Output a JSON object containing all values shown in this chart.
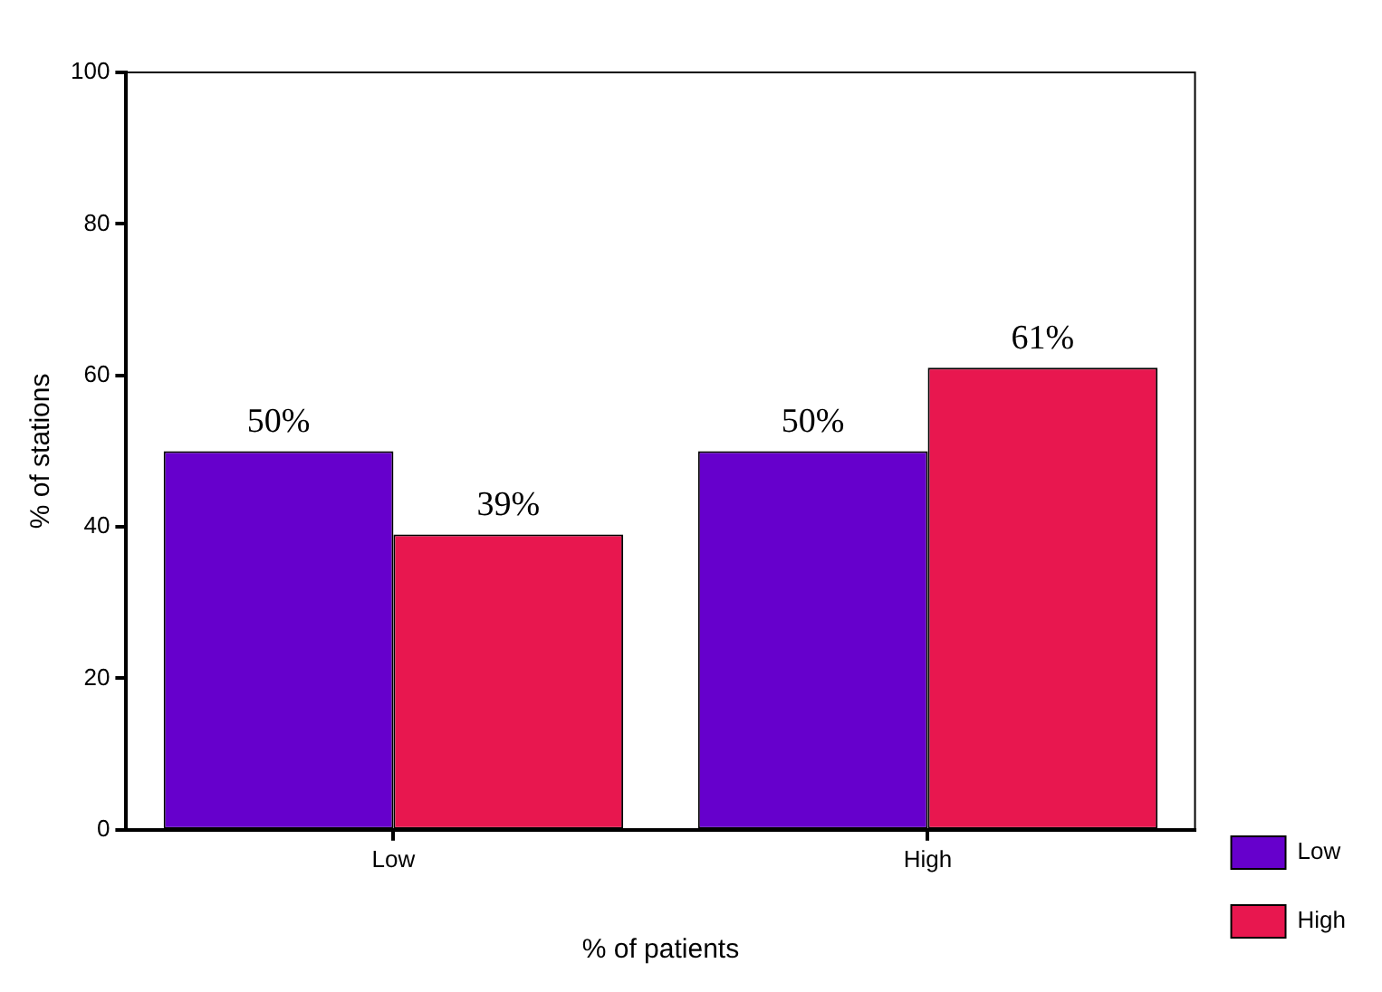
{
  "chart_data": {
    "type": "bar",
    "xlabel": "% of patients",
    "ylabel": "% of stations",
    "categories": [
      "Low",
      "High"
    ],
    "series": [
      {
        "name": "Low",
        "color": "#6600cc",
        "values": [
          50,
          50
        ],
        "value_labels": [
          "50%",
          "50%"
        ]
      },
      {
        "name": "High",
        "color": "#e8174f",
        "values": [
          39,
          61
        ],
        "value_labels": [
          "39%",
          "61%"
        ]
      }
    ],
    "ylim": [
      0,
      100
    ],
    "yticks": [
      0,
      20,
      40,
      60,
      80,
      100
    ],
    "grid": false,
    "legend": "bottom right"
  }
}
